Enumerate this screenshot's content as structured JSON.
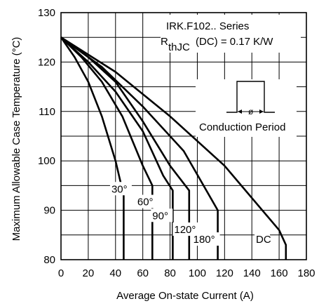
{
  "chart_data": {
    "type": "line",
    "title": "",
    "xlabel": "Average On-state Current (A)",
    "ylabel": "Maximum Allowable Case Temperature (°C)",
    "xlim": [
      0,
      180
    ],
    "ylim": [
      80,
      130
    ],
    "xticks": [
      0,
      20,
      40,
      60,
      80,
      100,
      120,
      140,
      160,
      180
    ],
    "yticks": [
      80,
      90,
      100,
      110,
      120,
      130
    ],
    "grid": true,
    "annotations": {
      "series_name": "IRK.F102.. Series",
      "rth_prefix": "R",
      "rth_sub": "thJC",
      "rth_suffix": "(DC) = 0.17 K/W",
      "conduction_label": "Conduction Period",
      "conduction_symbol": "ø"
    },
    "series": [
      {
        "label": "30°",
        "x": [
          0,
          10,
          20,
          30,
          40,
          46,
          46
        ],
        "y": [
          125,
          121,
          116,
          109,
          100,
          93,
          80
        ]
      },
      {
        "label": "60°",
        "x": [
          0,
          15,
          30,
          45,
          60,
          67,
          67
        ],
        "y": [
          125,
          121,
          116,
          109,
          99,
          95,
          80
        ]
      },
      {
        "label": "90°",
        "x": [
          0,
          20,
          40,
          60,
          75,
          82,
          82
        ],
        "y": [
          125,
          120,
          114,
          106,
          97,
          94,
          80
        ]
      },
      {
        "label": "120°",
        "x": [
          0,
          20,
          40,
          60,
          80,
          94,
          94
        ],
        "y": [
          125,
          121,
          116,
          108,
          99,
          94,
          80
        ]
      },
      {
        "label": "180°",
        "x": [
          0,
          30,
          60,
          90,
          115,
          115
        ],
        "y": [
          125,
          119,
          111,
          102,
          90,
          80
        ]
      },
      {
        "label": "DC",
        "x": [
          0,
          40,
          80,
          120,
          160,
          165,
          165
        ],
        "y": [
          125,
          118,
          109,
          99,
          86,
          83,
          80
        ]
      }
    ]
  }
}
